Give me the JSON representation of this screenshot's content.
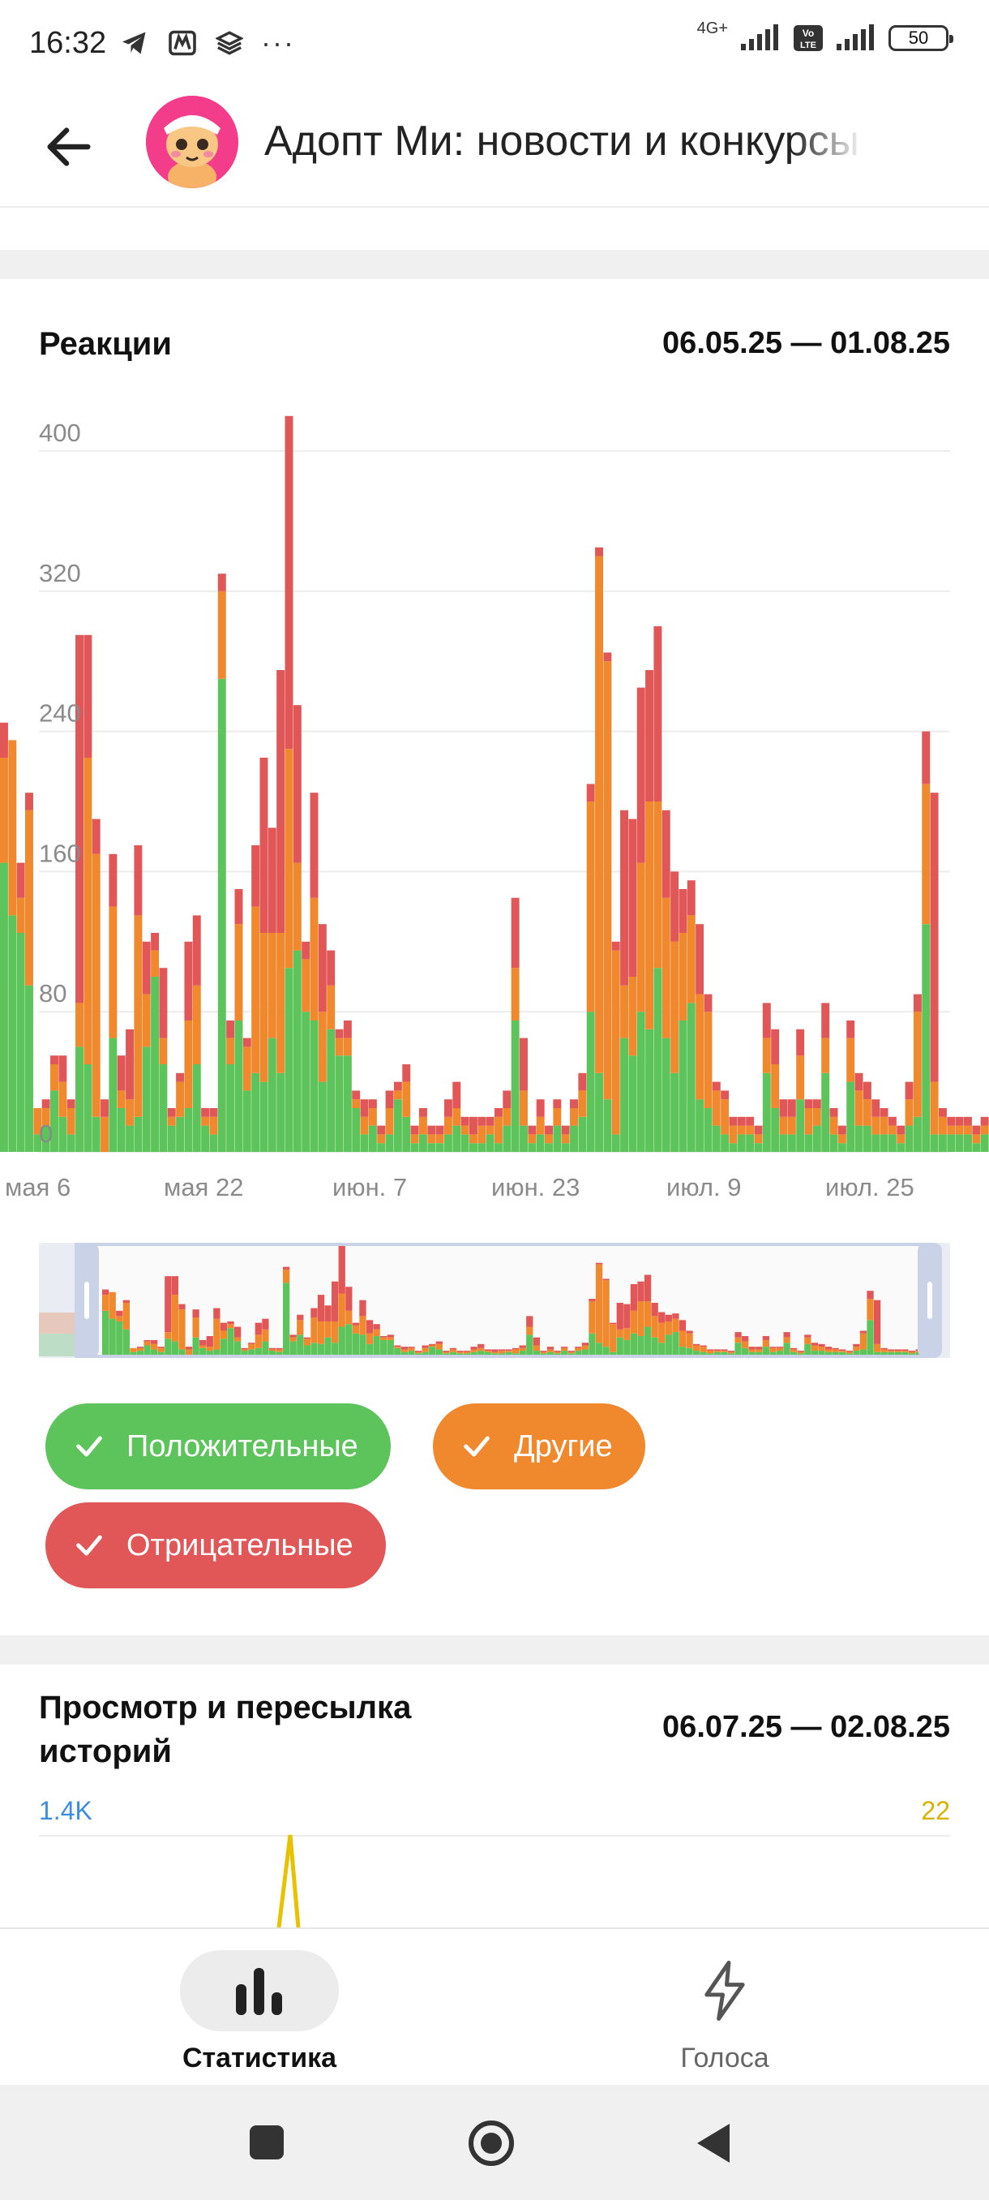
{
  "status_bar": {
    "time": "16:32",
    "dots": "···",
    "network": "4G+",
    "volte": "VoLTE",
    "battery": "50"
  },
  "header": {
    "title": "Адопт Ми: новости и конкурсы"
  },
  "reactions": {
    "title": "Реакции",
    "range": "06.05.25 — 01.08.25"
  },
  "chart_data": {
    "type": "bar",
    "stacked": true,
    "title": "Реакции",
    "y_ticks": [
      "0",
      "80",
      "160",
      "240",
      "320",
      "400"
    ],
    "ylim": [
      0,
      400
    ],
    "x_tick_labels": [
      "мая 6",
      "мая 22",
      "июн. 7",
      "июн. 23",
      "июл. 9",
      "июл. 25"
    ],
    "grid": true,
    "series": [
      {
        "name": "Положительные",
        "color": "#5cc45a",
        "values": [
          165,
          135,
          125,
          95,
          10,
          15,
          35,
          20,
          10,
          60,
          50,
          20,
          0,
          65,
          25,
          15,
          20,
          60,
          100,
          50,
          15,
          20,
          25,
          50,
          15,
          10,
          270,
          50,
          75,
          35,
          45,
          40,
          65,
          45,
          105,
          115,
          80,
          75,
          40,
          70,
          55,
          55,
          25,
          10,
          15,
          5,
          10,
          30,
          20,
          5,
          10,
          5,
          5,
          10,
          15,
          10,
          5,
          5,
          10,
          5,
          15,
          75,
          15,
          5,
          10,
          5,
          15,
          5,
          15,
          20,
          80,
          45,
          30,
          10,
          65,
          55,
          80,
          70,
          105,
          65,
          45,
          75,
          85,
          30,
          25,
          15,
          10,
          5,
          10,
          10,
          5,
          45,
          25,
          10,
          10,
          30,
          10,
          15,
          45,
          10,
          5,
          40,
          15,
          15,
          10,
          10,
          10,
          5,
          15,
          20,
          130,
          10,
          10,
          10,
          10,
          10,
          5,
          10
        ]
      },
      {
        "name": "Другие",
        "color": "#f0892e",
        "values": [
          60,
          100,
          20,
          100,
          15,
          10,
          15,
          20,
          15,
          25,
          175,
          150,
          20,
          75,
          10,
          15,
          115,
          30,
          15,
          15,
          5,
          20,
          50,
          45,
          5,
          10,
          50,
          15,
          55,
          25,
          95,
          85,
          60,
          80,
          125,
          50,
          30,
          70,
          40,
          25,
          10,
          10,
          5,
          10,
          10,
          5,
          15,
          5,
          20,
          5,
          10,
          5,
          5,
          10,
          10,
          5,
          5,
          10,
          5,
          15,
          10,
          30,
          20,
          5,
          10,
          5,
          10,
          5,
          10,
          15,
          120,
          295,
          250,
          105,
          30,
          45,
          85,
          130,
          95,
          80,
          75,
          50,
          50,
          60,
          55,
          20,
          20,
          10,
          5,
          5,
          5,
          20,
          25,
          10,
          10,
          25,
          15,
          10,
          20,
          10,
          5,
          25,
          20,
          15,
          10,
          10,
          5,
          5,
          15,
          60,
          80,
          30,
          10,
          5,
          5,
          5,
          5,
          5
        ]
      },
      {
        "name": "Отрицательные",
        "color": "#e15656",
        "values": [
          20,
          0,
          20,
          10,
          0,
          5,
          5,
          15,
          5,
          210,
          70,
          20,
          10,
          30,
          20,
          40,
          40,
          30,
          10,
          40,
          5,
          5,
          45,
          40,
          5,
          5,
          10,
          10,
          20,
          5,
          35,
          100,
          60,
          150,
          190,
          90,
          10,
          60,
          50,
          20,
          5,
          10,
          5,
          10,
          5,
          5,
          10,
          5,
          10,
          5,
          5,
          5,
          5,
          10,
          15,
          5,
          10,
          5,
          5,
          5,
          10,
          40,
          30,
          5,
          10,
          5,
          5,
          5,
          5,
          10,
          10,
          5,
          5,
          5,
          100,
          90,
          100,
          75,
          100,
          50,
          40,
          25,
          20,
          40,
          10,
          5,
          5,
          5,
          5,
          5,
          5,
          20,
          20,
          10,
          10,
          15,
          5,
          5,
          20,
          5,
          5,
          10,
          10,
          10,
          10,
          5,
          5,
          5,
          10,
          10,
          30,
          165,
          5,
          5,
          5,
          5,
          5,
          5
        ]
      }
    ]
  },
  "legend": {
    "positive": "Положительные",
    "other": "Другие",
    "negative": "Отрицательные"
  },
  "stories": {
    "title": "Просмотр и пересылка историй",
    "range": "06.07.25 — 02.08.25",
    "left_value": "1.4K",
    "right_value": "22"
  },
  "tabs": {
    "statistics": "Статистика",
    "boosts": "Голоса"
  },
  "colors": {
    "positive": "#5cc45a",
    "other": "#f0892e",
    "negative": "#e15656",
    "accent_blue": "#3a8de0",
    "accent_yellow": "#d9b100"
  }
}
